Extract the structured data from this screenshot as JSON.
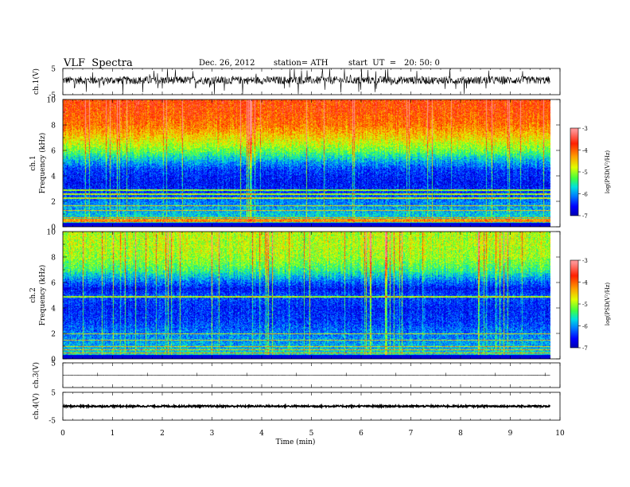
{
  "header": {
    "title": "VLF  Spectra",
    "date": "Dec. 26, 2012",
    "station": "station= ATH",
    "start_label": "start  UT  =",
    "start_time": "20: 50: 0"
  },
  "colors": {
    "spectrogram_scale": [
      "#000080",
      "#0000ff",
      "#0080ff",
      "#00e0e0",
      "#40ff40",
      "#e0ff00",
      "#ffa000",
      "#ff2000",
      "#ff9090"
    ],
    "trace": "#000000"
  },
  "chart_data": [
    {
      "type": "line",
      "panel": "ch1-waveform",
      "ylabel": "ch.1(V)",
      "yticks": [
        "5",
        "-5"
      ],
      "ylim": [
        -5,
        5
      ],
      "xlim": [
        0,
        10
      ],
      "trace_extent_min": 9.8,
      "baseline": 0.5,
      "noise_amplitude": 1.5
    },
    {
      "type": "heatmap",
      "panel": "ch1-spectrogram",
      "ylabel_top": "ch.1",
      "ylabel": "Frequency  (kHz)",
      "yticks": [
        "0",
        "2",
        "4",
        "6",
        "8",
        "10"
      ],
      "ylim": [
        0,
        10
      ],
      "xlim": [
        0,
        10
      ],
      "data_extent_min": 9.8,
      "colorbar": {
        "label": "log(PSD(V²/Hz)",
        "ticks": [
          "-3",
          "-4",
          "-5",
          "-6",
          "-7"
        ],
        "range": [
          -7,
          -3
        ]
      },
      "profile_khz": [
        0,
        0.5,
        1,
        2,
        3,
        3.5,
        4.5,
        5.2,
        6,
        7,
        8,
        9,
        10
      ],
      "profile_logpsd": [
        -5.4,
        -5.6,
        -5.8,
        -6.1,
        -6.5,
        -6.6,
        -6.4,
        -5.9,
        -5.2,
        -4.6,
        -4.1,
        -3.9,
        -3.8
      ],
      "lines_khz": [
        0.45,
        0.6,
        0.75,
        1.3,
        1.7,
        2.3,
        2.6,
        2.9
      ]
    },
    {
      "type": "heatmap",
      "panel": "ch2-spectrogram",
      "ylabel_top": "ch.2",
      "ylabel": "Frequency  (kHz)",
      "yticks": [
        "0",
        "2",
        "4",
        "6",
        "8",
        "10"
      ],
      "ylim": [
        0,
        10
      ],
      "xlim": [
        0,
        10
      ],
      "data_extent_min": 9.8,
      "colorbar": {
        "label": "log(PSD(V²/Hz)",
        "ticks": [
          "-3",
          "-4",
          "-5",
          "-6",
          "-7"
        ],
        "range": [
          -7,
          -3
        ]
      },
      "profile_khz": [
        0,
        0.5,
        1,
        2,
        3,
        4,
        5,
        5.5,
        6.3,
        7,
        8,
        9,
        10
      ],
      "profile_logpsd": [
        -5.5,
        -5.7,
        -5.9,
        -6.1,
        -6.4,
        -6.5,
        -6.3,
        -6.6,
        -6.0,
        -5.4,
        -5.0,
        -4.9,
        -4.9
      ],
      "lines_khz": [
        0.5,
        0.75,
        1.0,
        1.5,
        2.0,
        4.9
      ]
    },
    {
      "type": "line",
      "panel": "ch3-waveform",
      "ylabel": "ch.3(V)",
      "yticks": [
        "5"
      ],
      "ylim": [
        -5,
        5
      ],
      "xlim": [
        0,
        10
      ],
      "trace_extent_min": 9.8,
      "baseline": 0,
      "noise_amplitude": 0.05
    },
    {
      "type": "line",
      "panel": "ch4-waveform",
      "ylabel": "ch.4(V)",
      "yticks": [
        "5",
        "-5"
      ],
      "ylim": [
        -5,
        5
      ],
      "xlim": [
        0,
        10
      ],
      "trace_extent_min": 9.8,
      "baseline": 0,
      "noise_amplitude": 0.3
    }
  ],
  "xaxis": {
    "label": "Time  (min)",
    "ticks": [
      "0",
      "1",
      "2",
      "3",
      "4",
      "5",
      "6",
      "7",
      "8",
      "9",
      "10"
    ]
  }
}
